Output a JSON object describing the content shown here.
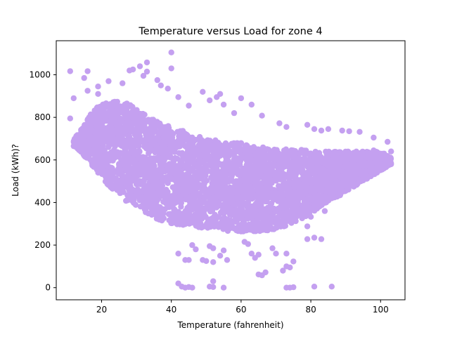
{
  "chart_data": {
    "type": "scatter",
    "title": "Temperature versus Load for zone 4",
    "xlabel": "Temperature (fahrenheit)",
    "ylabel": "Load (kWh)?",
    "xlim": [
      7,
      107
    ],
    "ylim": [
      -57,
      1160
    ],
    "xticks": [
      20,
      40,
      60,
      80,
      100
    ],
    "yticks": [
      0,
      200,
      400,
      600,
      800,
      1000
    ],
    "grid": false,
    "legend": "none",
    "color": "#c4a0f0",
    "dense_band": {
      "x_start": 12,
      "x_end": 103,
      "step": 1,
      "upper": [
        700,
        720,
        740,
        760,
        790,
        820,
        840,
        860,
        870,
        870,
        880,
        880,
        880,
        870,
        870,
        870,
        860,
        850,
        840,
        830,
        820,
        810,
        800,
        790,
        780,
        770,
        760,
        760,
        750,
        750,
        740,
        740,
        730,
        720,
        720,
        710,
        710,
        700,
        700,
        700,
        700,
        690,
        690,
        690,
        690,
        680,
        680,
        680,
        680,
        670,
        670,
        670,
        660,
        660,
        660,
        660,
        650,
        650,
        650,
        650,
        650,
        650,
        650,
        650,
        650,
        650,
        650,
        640,
        640,
        640,
        640,
        640,
        640,
        640,
        640,
        640,
        640,
        640,
        640,
        640,
        640,
        640,
        640,
        640,
        640,
        640,
        640,
        640,
        630,
        630,
        620,
        610
      ],
      "lower": [
        670,
        650,
        640,
        620,
        600,
        580,
        560,
        540,
        520,
        500,
        480,
        460,
        450,
        440,
        430,
        410,
        400,
        390,
        380,
        370,
        360,
        350,
        340,
        330,
        320,
        315,
        310,
        305,
        300,
        298,
        295,
        292,
        290,
        288,
        286,
        284,
        282,
        280,
        278,
        276,
        274,
        272,
        270,
        268,
        266,
        265,
        264,
        263,
        262,
        262,
        262,
        262,
        262,
        264,
        266,
        268,
        270,
        272,
        275,
        280,
        285,
        290,
        295,
        300,
        310,
        320,
        330,
        340,
        350,
        360,
        370,
        380,
        390,
        400,
        410,
        420,
        430,
        440,
        450,
        460,
        470,
        480,
        490,
        500,
        510,
        520,
        530,
        540,
        550,
        560,
        570,
        580
      ]
    },
    "points": [
      {
        "x": 11,
        "y": 1017
      },
      {
        "x": 16,
        "y": 1017
      },
      {
        "x": 11,
        "y": 795
      },
      {
        "x": 12,
        "y": 890
      },
      {
        "x": 15,
        "y": 985
      },
      {
        "x": 16,
        "y": 925
      },
      {
        "x": 19,
        "y": 945
      },
      {
        "x": 22,
        "y": 970
      },
      {
        "x": 19,
        "y": 910
      },
      {
        "x": 22,
        "y": 852
      },
      {
        "x": 26,
        "y": 960
      },
      {
        "x": 28,
        "y": 1020
      },
      {
        "x": 29,
        "y": 1025
      },
      {
        "x": 31,
        "y": 1040
      },
      {
        "x": 33,
        "y": 1058
      },
      {
        "x": 33,
        "y": 1015
      },
      {
        "x": 32,
        "y": 995
      },
      {
        "x": 36,
        "y": 975
      },
      {
        "x": 37,
        "y": 950
      },
      {
        "x": 40,
        "y": 1030
      },
      {
        "x": 40,
        "y": 1105
      },
      {
        "x": 39,
        "y": 935
      },
      {
        "x": 42,
        "y": 895
      },
      {
        "x": 45,
        "y": 855
      },
      {
        "x": 49,
        "y": 920
      },
      {
        "x": 51,
        "y": 880
      },
      {
        "x": 53,
        "y": 895
      },
      {
        "x": 54,
        "y": 910
      },
      {
        "x": 55,
        "y": 860
      },
      {
        "x": 58,
        "y": 820
      },
      {
        "x": 60,
        "y": 890
      },
      {
        "x": 63,
        "y": 860
      },
      {
        "x": 66,
        "y": 808
      },
      {
        "x": 71,
        "y": 772
      },
      {
        "x": 73,
        "y": 755
      },
      {
        "x": 79,
        "y": 765
      },
      {
        "x": 81,
        "y": 745
      },
      {
        "x": 83,
        "y": 738
      },
      {
        "x": 85,
        "y": 745
      },
      {
        "x": 89,
        "y": 738
      },
      {
        "x": 91,
        "y": 735
      },
      {
        "x": 94,
        "y": 732
      },
      {
        "x": 98,
        "y": 705
      },
      {
        "x": 98,
        "y": 645
      },
      {
        "x": 102,
        "y": 685
      },
      {
        "x": 103,
        "y": 640
      },
      {
        "x": 103,
        "y": 580
      },
      {
        "x": 101,
        "y": 565
      },
      {
        "x": 99,
        "y": 568
      },
      {
        "x": 97,
        "y": 555
      },
      {
        "x": 95,
        "y": 550
      },
      {
        "x": 94,
        "y": 505
      },
      {
        "x": 90,
        "y": 478
      },
      {
        "x": 88,
        "y": 438
      },
      {
        "x": 86,
        "y": 420
      },
      {
        "x": 84,
        "y": 360
      },
      {
        "x": 80,
        "y": 333
      },
      {
        "x": 79,
        "y": 288
      },
      {
        "x": 81,
        "y": 235
      },
      {
        "x": 79,
        "y": 228
      },
      {
        "x": 83,
        "y": 228
      },
      {
        "x": 81,
        "y": 5
      },
      {
        "x": 86,
        "y": 5
      },
      {
        "x": 73,
        "y": 0
      },
      {
        "x": 74,
        "y": 0
      },
      {
        "x": 75,
        "y": 2
      },
      {
        "x": 75,
        "y": 123
      },
      {
        "x": 73,
        "y": 100
      },
      {
        "x": 72,
        "y": 80
      },
      {
        "x": 74,
        "y": 95
      },
      {
        "x": 69,
        "y": 185
      },
      {
        "x": 70,
        "y": 160
      },
      {
        "x": 73,
        "y": 160
      },
      {
        "x": 67,
        "y": 72
      },
      {
        "x": 65,
        "y": 62
      },
      {
        "x": 66,
        "y": 58
      },
      {
        "x": 62,
        "y": 205
      },
      {
        "x": 61,
        "y": 215
      },
      {
        "x": 63,
        "y": 160
      },
      {
        "x": 64,
        "y": 140
      },
      {
        "x": 65,
        "y": 155
      },
      {
        "x": 56,
        "y": 130
      },
      {
        "x": 55,
        "y": 175
      },
      {
        "x": 54,
        "y": 150
      },
      {
        "x": 52,
        "y": 185
      },
      {
        "x": 51,
        "y": 195
      },
      {
        "x": 52,
        "y": 120
      },
      {
        "x": 49,
        "y": 130
      },
      {
        "x": 50,
        "y": 125
      },
      {
        "x": 46,
        "y": 200
      },
      {
        "x": 47,
        "y": 180
      },
      {
        "x": 45,
        "y": 130
      },
      {
        "x": 44,
        "y": 130
      },
      {
        "x": 42,
        "y": 160
      },
      {
        "x": 42,
        "y": 20
      },
      {
        "x": 43,
        "y": 5
      },
      {
        "x": 44,
        "y": 0
      },
      {
        "x": 45,
        "y": 3
      },
      {
        "x": 46,
        "y": 0
      },
      {
        "x": 51,
        "y": 5
      },
      {
        "x": 52,
        "y": 3
      },
      {
        "x": 52,
        "y": 30
      },
      {
        "x": 55,
        "y": 0
      },
      {
        "x": 12,
        "y": 665
      },
      {
        "x": 14,
        "y": 700
      },
      {
        "x": 19,
        "y": 625
      },
      {
        "x": 20,
        "y": 590
      },
      {
        "x": 23,
        "y": 485
      },
      {
        "x": 24,
        "y": 478
      },
      {
        "x": 27,
        "y": 408
      },
      {
        "x": 29,
        "y": 458
      },
      {
        "x": 48,
        "y": 380
      },
      {
        "x": 56,
        "y": 305
      }
    ],
    "fill_count": 4200
  }
}
